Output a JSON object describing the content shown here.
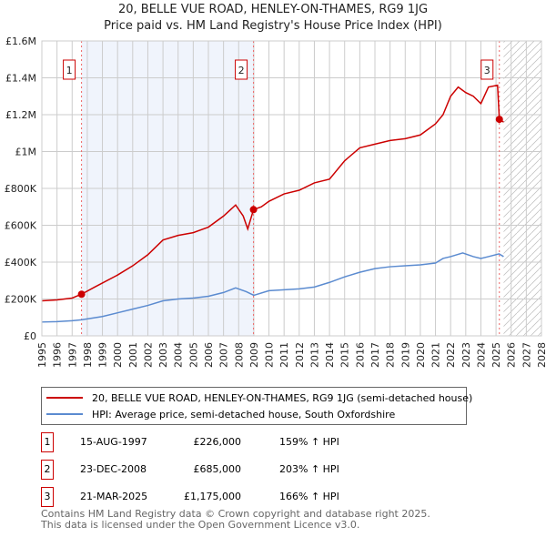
{
  "title": "20, BELLE VUE ROAD, HENLEY-ON-THAMES, RG9 1JG",
  "subtitle": "Price paid vs. HM Land Registry's House Price Index (HPI)",
  "chart_data": {
    "type": "line",
    "xlim": [
      1995,
      2028
    ],
    "ylim": [
      0,
      1600000
    ],
    "x_ticks": [
      "1995",
      "1996",
      "1997",
      "1998",
      "1999",
      "2000",
      "2001",
      "2002",
      "2003",
      "2004",
      "2005",
      "2006",
      "2007",
      "2008",
      "2009",
      "2010",
      "2011",
      "2012",
      "2013",
      "2014",
      "2015",
      "2016",
      "2017",
      "2018",
      "2019",
      "2020",
      "2021",
      "2022",
      "2023",
      "2024",
      "2025",
      "2026",
      "2027",
      "2028"
    ],
    "y_ticks": [
      {
        "v": 0,
        "l": "£0"
      },
      {
        "v": 200000,
        "l": "£200K"
      },
      {
        "v": 400000,
        "l": "£400K"
      },
      {
        "v": 600000,
        "l": "£600K"
      },
      {
        "v": 800000,
        "l": "£800K"
      },
      {
        "v": 1000000,
        "l": "£1M"
      },
      {
        "v": 1200000,
        "l": "£1.2M"
      },
      {
        "v": 1400000,
        "l": "£1.4M"
      },
      {
        "v": 1600000,
        "l": "£1.6M"
      }
    ],
    "shaded_range": [
      1997.62,
      2008.98
    ],
    "hatched_from": 2025.5,
    "series": [
      {
        "name": "20, BELLE VUE ROAD, HENLEY-ON-THAMES, RG9 1JG (semi-detached house)",
        "color": "#cc0000",
        "x": [
          1995,
          1996,
          1997,
          1997.62,
          1998.5,
          2000,
          2001,
          2002,
          2003,
          2004,
          2005,
          2006,
          2007,
          2007.8,
          2008.3,
          2008.6,
          2008.98,
          2009.5,
          2010,
          2011,
          2012,
          2013,
          2014,
          2015,
          2016,
          2017,
          2018,
          2019,
          2020,
          2021,
          2021.5,
          2022,
          2022.5,
          2023,
          2023.5,
          2024,
          2024.5,
          2025.1,
          2025.22,
          2025.5
        ],
        "y": [
          190000,
          195000,
          205000,
          226000,
          265000,
          330000,
          380000,
          440000,
          520000,
          545000,
          560000,
          590000,
          650000,
          710000,
          650000,
          580000,
          685000,
          700000,
          730000,
          770000,
          790000,
          830000,
          850000,
          950000,
          1020000,
          1040000,
          1060000,
          1070000,
          1090000,
          1150000,
          1200000,
          1300000,
          1350000,
          1320000,
          1300000,
          1260000,
          1350000,
          1360000,
          1175000,
          1160000
        ]
      },
      {
        "name": "HPI: Average price, semi-detached house, South Oxfordshire",
        "color": "#5b8bd0",
        "x": [
          1995,
          1996,
          1997,
          1997.62,
          1999,
          2000,
          2001,
          2002,
          2003,
          2004,
          2005,
          2006,
          2007,
          2007.8,
          2008.5,
          2009,
          2010,
          2011,
          2012,
          2013,
          2014,
          2015,
          2016,
          2017,
          2018,
          2019,
          2020,
          2021,
          2021.5,
          2022,
          2022.8,
          2023.5,
          2024,
          2024.5,
          2025.2,
          2025.5
        ],
        "y": [
          75000,
          77000,
          82000,
          87000,
          105000,
          125000,
          145000,
          165000,
          190000,
          200000,
          205000,
          215000,
          235000,
          260000,
          240000,
          220000,
          245000,
          250000,
          255000,
          265000,
          290000,
          320000,
          345000,
          365000,
          375000,
          380000,
          385000,
          395000,
          420000,
          430000,
          450000,
          430000,
          420000,
          430000,
          445000,
          430000
        ]
      }
    ],
    "sales": [
      {
        "label": "1",
        "x": 1997.62,
        "y": 226000
      },
      {
        "label": "2",
        "x": 2008.98,
        "y": 685000
      },
      {
        "label": "3",
        "x": 2025.22,
        "y": 1175000
      }
    ]
  },
  "legend": [
    "20, BELLE VUE ROAD, HENLEY-ON-THAMES, RG9 1JG (semi-detached house)",
    "HPI: Average price, semi-detached house, South Oxfordshire"
  ],
  "table": [
    {
      "n": "1",
      "date": "15-AUG-1997",
      "price": "£226,000",
      "hpi": "159% ↑ HPI"
    },
    {
      "n": "2",
      "date": "23-DEC-2008",
      "price": "£685,000",
      "hpi": "203% ↑ HPI"
    },
    {
      "n": "3",
      "date": "21-MAR-2025",
      "price": "£1,175,000",
      "hpi": "166% ↑ HPI"
    }
  ],
  "footer": [
    "Contains HM Land Registry data © Crown copyright and database right 2025.",
    "This data is licensed under the Open Government Licence v3.0."
  ]
}
